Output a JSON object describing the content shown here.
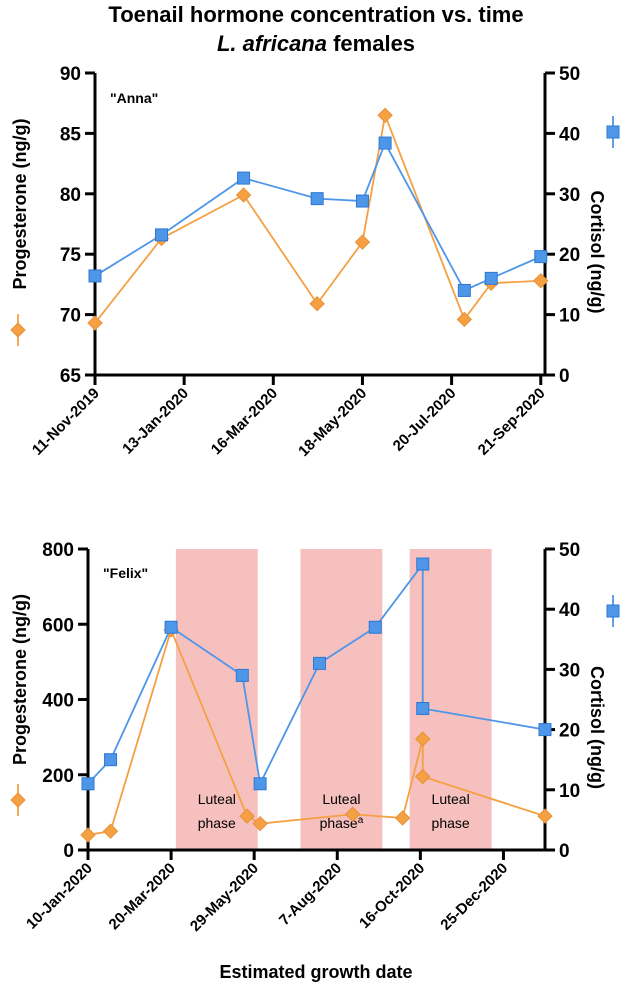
{
  "figure": {
    "title_line1": "Toenail hormone concentration vs. time",
    "title_italic": "L. africana",
    "title_rest": " females",
    "xlabel": "Estimated growth date"
  },
  "colors": {
    "progesterone": "#F5A043",
    "progesterone_edge": "#E8913A",
    "cortisol": "#4E96E8",
    "cortisol_edge": "#2F78D4",
    "shade": "#F6C0BE",
    "axis": "#000000"
  },
  "chart_data": [
    {
      "type": "line",
      "panel_label": "\"Anna\"",
      "x_unit": "days since 11-Nov-2019",
      "xlim": [
        0,
        318
      ],
      "xticks": [
        0,
        63,
        126,
        189,
        252,
        315
      ],
      "xtick_labels": [
        "11-Nov-2019",
        "13-Jan-2020",
        "16-Mar-2020",
        "18-May-2020",
        "20-Jul-2020",
        "21-Sep-2020"
      ],
      "y_left": {
        "label": "Progesterone (ng/g)",
        "lim": [
          65,
          90
        ],
        "ticks": [
          65,
          70,
          75,
          80,
          85,
          90
        ]
      },
      "y_right": {
        "label": "Cortisol (ng/g)",
        "lim": [
          0,
          50
        ],
        "ticks": [
          0,
          10,
          20,
          30,
          40,
          50
        ]
      },
      "series": [
        {
          "name": "Progesterone",
          "axis": "left",
          "marker": "diamond",
          "x": [
            0,
            47,
            105,
            157,
            189,
            205,
            261,
            280,
            315
          ],
          "y": [
            69.3,
            76.3,
            79.9,
            70.9,
            76.0,
            86.5,
            69.6,
            72.6,
            72.8
          ]
        },
        {
          "name": "Cortisol",
          "axis": "right",
          "marker": "square",
          "x": [
            0,
            47,
            105,
            157,
            189,
            205,
            261,
            280,
            315
          ],
          "y": [
            16.4,
            23.2,
            32.6,
            29.2,
            28.8,
            38.4,
            14.0,
            16.0,
            19.6
          ]
        }
      ],
      "shaded_regions": []
    },
    {
      "type": "line",
      "panel_label": "\"Felix\"",
      "x_unit": "days since 10-Jan-2020",
      "xlim": [
        0,
        385
      ],
      "xticks": [
        0,
        70,
        140,
        210,
        280,
        350
      ],
      "xtick_labels": [
        "10-Jan-2020",
        "20-Mar-2020",
        "29-May-2020",
        "7-Aug-2020",
        "16-Oct-2020",
        "25-Dec-2020"
      ],
      "y_left": {
        "label": "Progesterone (ng/g)",
        "lim": [
          0,
          800
        ],
        "ticks": [
          0,
          200,
          400,
          600,
          800
        ]
      },
      "y_right": {
        "label": "Cortisol (ng/g)",
        "lim": [
          0,
          50
        ],
        "ticks": [
          0,
          10,
          20,
          30,
          40,
          50
        ]
      },
      "series": [
        {
          "name": "Progesterone",
          "axis": "left",
          "marker": "diamond",
          "x": [
            0,
            19,
            70,
            134,
            145,
            223,
            265,
            282,
            282,
            385
          ],
          "y": [
            40,
            50,
            585,
            90,
            70,
            95,
            85,
            295,
            195,
            90
          ]
        },
        {
          "name": "Cortisol",
          "axis": "right",
          "marker": "square",
          "x": [
            0,
            19,
            70,
            130,
            145,
            195,
            242,
            282,
            282,
            385
          ],
          "y": [
            11,
            15,
            37,
            29,
            11,
            31,
            37,
            47.5,
            23.5,
            20
          ]
        }
      ],
      "shaded_regions": [
        {
          "x0": 74,
          "x1": 143,
          "label": "Luteal\nphase"
        },
        {
          "x0": 179,
          "x1": 248,
          "label": "Luteal\nphasea"
        },
        {
          "x0": 271,
          "x1": 340,
          "label": "Luteal\nphase"
        }
      ]
    }
  ]
}
